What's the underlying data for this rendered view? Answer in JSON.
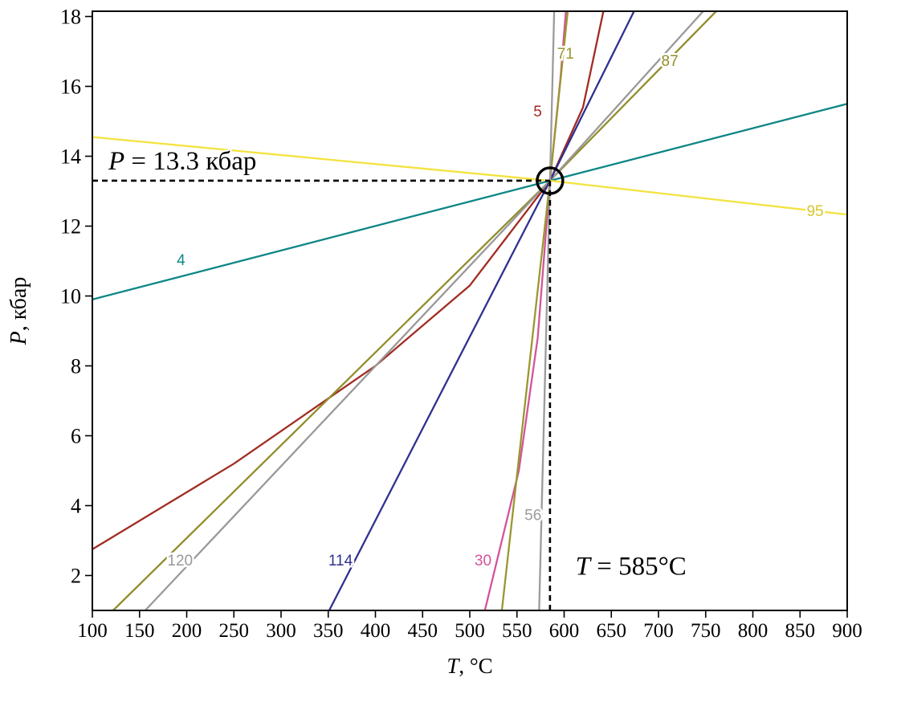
{
  "page": {
    "background": "#ffffff",
    "axis_color": "#000000",
    "annotation_color": "#000000"
  },
  "chart_data": {
    "type": "line",
    "title": "",
    "xlabel": {
      "var": "T",
      "rest": ", °C"
    },
    "ylabel": {
      "var": "P",
      "rest": ", кбар"
    },
    "xlim": [
      100,
      900
    ],
    "ylim": [
      1,
      18.15
    ],
    "x_ticks": [
      100,
      150,
      200,
      250,
      300,
      350,
      400,
      450,
      500,
      550,
      600,
      650,
      700,
      750,
      800,
      850,
      900
    ],
    "y_ticks": [
      2,
      4,
      6,
      8,
      10,
      12,
      14,
      16,
      18
    ],
    "grid": false,
    "legend": "none",
    "intersection": {
      "T": 585,
      "P": 13.3
    },
    "series": [
      {
        "name": "4",
        "color": "#0e8686",
        "points": [
          [
            100,
            9.9
          ],
          [
            585,
            13.3
          ],
          [
            900,
            15.5
          ]
        ]
      },
      {
        "name": "5",
        "color": "#a12c22",
        "points": [
          [
            100,
            2.75
          ],
          [
            250,
            5.2
          ],
          [
            400,
            8.0
          ],
          [
            500,
            10.3
          ],
          [
            585,
            13.3
          ],
          [
            620,
            15.4
          ],
          [
            642,
            18.2
          ]
        ]
      },
      {
        "name": "87",
        "color": "#918e2b",
        "points": [
          [
            122,
            1
          ],
          [
            585,
            13.3
          ],
          [
            763,
            18.2
          ]
        ]
      },
      {
        "name": "120",
        "color": "#999999",
        "points": [
          [
            156,
            1
          ],
          [
            585,
            13.3
          ],
          [
            749,
            18.2
          ]
        ]
      },
      {
        "name": "114",
        "color": "#2f3190",
        "points": [
          [
            351,
            1
          ],
          [
            585,
            13.3
          ],
          [
            675,
            18.2
          ]
        ]
      },
      {
        "name": "30",
        "color": "#d4539b",
        "points": [
          [
            516,
            1
          ],
          [
            552,
            5.0
          ],
          [
            572,
            8.8
          ],
          [
            585,
            13.3
          ],
          [
            596,
            16.2
          ],
          [
            602,
            18.2
          ]
        ]
      },
      {
        "name": "71",
        "color": "#9a972f",
        "points": [
          [
            534,
            1
          ],
          [
            585,
            13.3
          ],
          [
            604,
            18.2
          ]
        ]
      },
      {
        "name": "56",
        "color": "#9b9b9b",
        "points": [
          [
            573.5,
            1
          ],
          [
            585,
            13.3
          ],
          [
            589.5,
            18.2
          ]
        ]
      },
      {
        "name": "95",
        "color": "#f3e33f",
        "points": [
          [
            100,
            14.55
          ],
          [
            585,
            13.3
          ],
          [
            900,
            12.33
          ]
        ]
      }
    ],
    "series_labels": [
      {
        "text": "4",
        "color": "#0e8686",
        "x": 194,
        "y": 11.05
      },
      {
        "text": "5",
        "color": "#a12c22",
        "x": 572,
        "y": 15.3
      },
      {
        "text": "30",
        "color": "#d4539b",
        "x": 514,
        "y": 2.45
      },
      {
        "text": "56",
        "color": "#9b9b9b",
        "x": 567,
        "y": 3.75
      },
      {
        "text": "71",
        "color": "#9a972f",
        "x": 601.5,
        "y": 16.95
      },
      {
        "text": "87",
        "color": "#918e2b",
        "x": 712,
        "y": 16.75
      },
      {
        "text": "95",
        "color": "#d8c62c",
        "x": 866,
        "y": 12.45
      },
      {
        "text": "114",
        "color": "#2f3190",
        "x": 363,
        "y": 2.45
      },
      {
        "text": "120",
        "color": "#999999",
        "x": 193,
        "y": 2.45
      }
    ],
    "annotations": {
      "dashed_horizontal": {
        "y": 13.3,
        "from_x": 100,
        "to_x": 585
      },
      "dashed_vertical": {
        "x": 585,
        "from_y": 1,
        "to_y": 13.3
      },
      "circle": {
        "x": 585,
        "y": 13.3,
        "radius_px": 16
      },
      "pressure_label": {
        "var": "P",
        "rest": " = 13.3 кбар",
        "x": 117,
        "y": 13.62
      },
      "temperature_label": {
        "var": "T",
        "rest": " = 585°C",
        "x": 612,
        "y": 2.02
      }
    }
  }
}
